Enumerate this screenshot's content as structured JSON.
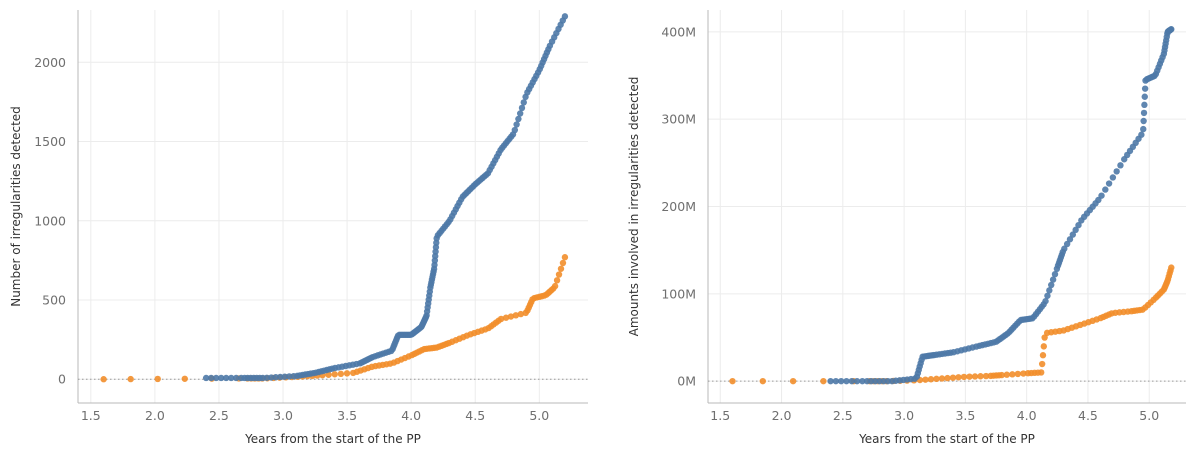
{
  "colors": {
    "blue": "#4e79a7",
    "orange": "#f28e2b"
  },
  "chart_data": [
    {
      "type": "scatter",
      "title": "",
      "xlabel": "Years from the start of the PP",
      "ylabel": "Number of irregularities detected",
      "xlim": [
        1.4,
        5.38
      ],
      "ylim": [
        -150,
        2330
      ],
      "xticks": [
        1.5,
        2.0,
        2.5,
        3.0,
        3.5,
        4.0,
        4.5,
        5.0
      ],
      "xtick_labels": [
        "1.5",
        "2.0",
        "2.5",
        "3.0",
        "3.5",
        "4.0",
        "4.5",
        "5.0"
      ],
      "yticks": [
        0,
        500,
        1000,
        1500,
        2000
      ],
      "ytick_labels": [
        "0",
        "500",
        "1000",
        "1500",
        "2000"
      ],
      "grid": true,
      "zero_line": true,
      "series": [
        {
          "color": "#4e79a7",
          "anchors": [
            [
              2.4,
              8
            ],
            [
              2.68,
              8
            ],
            [
              2.85,
              8
            ],
            [
              3.1,
              20
            ],
            [
              3.25,
              40
            ],
            [
              3.4,
              70
            ],
            [
              3.6,
              100
            ],
            [
              3.7,
              140
            ],
            [
              3.85,
              180
            ],
            [
              3.9,
              280
            ],
            [
              4.0,
              280
            ],
            [
              4.08,
              330
            ],
            [
              4.12,
              400
            ],
            [
              4.15,
              580
            ],
            [
              4.18,
              700
            ],
            [
              4.2,
              900
            ],
            [
              4.3,
              1000
            ],
            [
              4.4,
              1150
            ],
            [
              4.5,
              1230
            ],
            [
              4.6,
              1300
            ],
            [
              4.7,
              1450
            ],
            [
              4.8,
              1550
            ],
            [
              4.9,
              1800
            ],
            [
              5.0,
              1950
            ],
            [
              5.08,
              2100
            ],
            [
              5.2,
              2290
            ]
          ],
          "count": 180
        },
        {
          "color": "#f28e2b",
          "anchors": [
            [
              1.6,
              0
            ],
            [
              2.7,
              5
            ],
            [
              2.85,
              5
            ],
            [
              3.1,
              15
            ],
            [
              3.3,
              25
            ],
            [
              3.55,
              40
            ],
            [
              3.7,
              80
            ],
            [
              3.85,
              100
            ],
            [
              4.0,
              150
            ],
            [
              4.1,
              190
            ],
            [
              4.2,
              200
            ],
            [
              4.3,
              230
            ],
            [
              4.45,
              280
            ],
            [
              4.6,
              320
            ],
            [
              4.7,
              380
            ],
            [
              4.9,
              420
            ],
            [
              4.95,
              510
            ],
            [
              5.05,
              530
            ],
            [
              5.12,
              580
            ],
            [
              5.2,
              770
            ]
          ],
          "count": 100
        }
      ]
    },
    {
      "type": "scatter",
      "title": "",
      "xlabel": "Years from the start of the PP",
      "ylabel": "Amounts involved in irregularities detected",
      "xlim": [
        1.4,
        5.3
      ],
      "ylim": [
        -25,
        425
      ],
      "xticks": [
        1.5,
        2.0,
        2.5,
        3.0,
        3.5,
        4.0,
        4.5,
        5.0
      ],
      "xtick_labels": [
        "1.5",
        "2.0",
        "2.5",
        "3.0",
        "3.5",
        "4.0",
        "4.5",
        "5.0"
      ],
      "yticks": [
        0,
        100,
        200,
        300,
        400
      ],
      "ytick_labels": [
        "0M",
        "100M",
        "200M",
        "300M",
        "400M"
      ],
      "grid": true,
      "zero_line": true,
      "series": [
        {
          "color": "#4e79a7",
          "anchors": [
            [
              2.4,
              0
            ],
            [
              2.68,
              0
            ],
            [
              2.9,
              0
            ],
            [
              3.1,
              3
            ],
            [
              3.15,
              28
            ],
            [
              3.25,
              30
            ],
            [
              3.4,
              33
            ],
            [
              3.6,
              40
            ],
            [
              3.75,
              45
            ],
            [
              3.85,
              55
            ],
            [
              3.95,
              70
            ],
            [
              4.05,
              72
            ],
            [
              4.15,
              90
            ],
            [
              4.25,
              130
            ],
            [
              4.3,
              150
            ],
            [
              4.45,
              185
            ],
            [
              4.6,
              210
            ],
            [
              4.8,
              255
            ],
            [
              4.95,
              285
            ],
            [
              4.97,
              345
            ],
            [
              5.05,
              350
            ],
            [
              5.12,
              375
            ],
            [
              5.15,
              400
            ],
            [
              5.18,
              403
            ]
          ],
          "count": 150
        },
        {
          "color": "#f28e2b",
          "anchors": [
            [
              1.6,
              0
            ],
            [
              2.7,
              0
            ],
            [
              2.85,
              0
            ],
            [
              3.1,
              1
            ],
            [
              3.3,
              3
            ],
            [
              3.5,
              5
            ],
            [
              3.7,
              6
            ],
            [
              3.8,
              7
            ],
            [
              4.0,
              9
            ],
            [
              4.12,
              10
            ],
            [
              4.15,
              55
            ],
            [
              4.3,
              58
            ],
            [
              4.45,
              65
            ],
            [
              4.6,
              72
            ],
            [
              4.7,
              78
            ],
            [
              4.85,
              80
            ],
            [
              4.95,
              82
            ],
            [
              5.05,
              95
            ],
            [
              5.12,
              105
            ],
            [
              5.15,
              115
            ],
            [
              5.18,
              130
            ]
          ],
          "count": 90
        }
      ]
    }
  ]
}
